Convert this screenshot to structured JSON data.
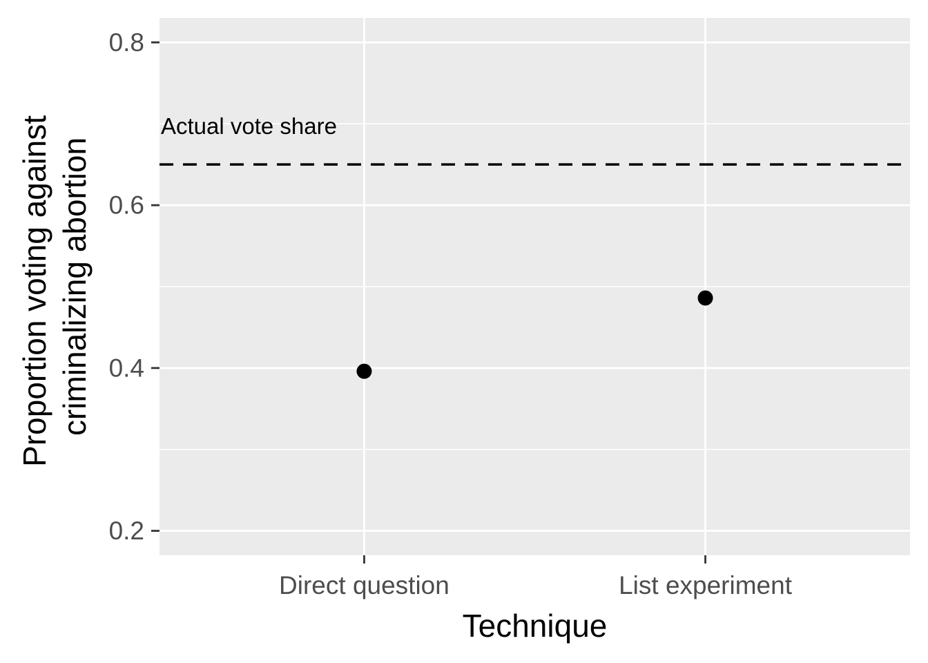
{
  "chart_data": {
    "type": "scatter",
    "categories": [
      "Direct question",
      "List experiment"
    ],
    "values": [
      0.396,
      0.486
    ],
    "xlabel": "Technique",
    "ylabel_lines": [
      "Proportion voting against",
      "criminalizing abortion"
    ],
    "ylim": [
      0.17,
      0.83
    ],
    "yticks": [
      0.2,
      0.4,
      0.6,
      0.8
    ],
    "ytick_labels": [
      "0.2",
      "0.4",
      "0.6",
      "0.8"
    ],
    "reference_line": {
      "value": 0.65,
      "style": "dashed",
      "label": "Actual vote share"
    },
    "grid": true,
    "colors": {
      "panel": "#ebebeb",
      "grid": "#ffffff",
      "point": "#000000",
      "tick_text": "#4d4d4d"
    }
  }
}
